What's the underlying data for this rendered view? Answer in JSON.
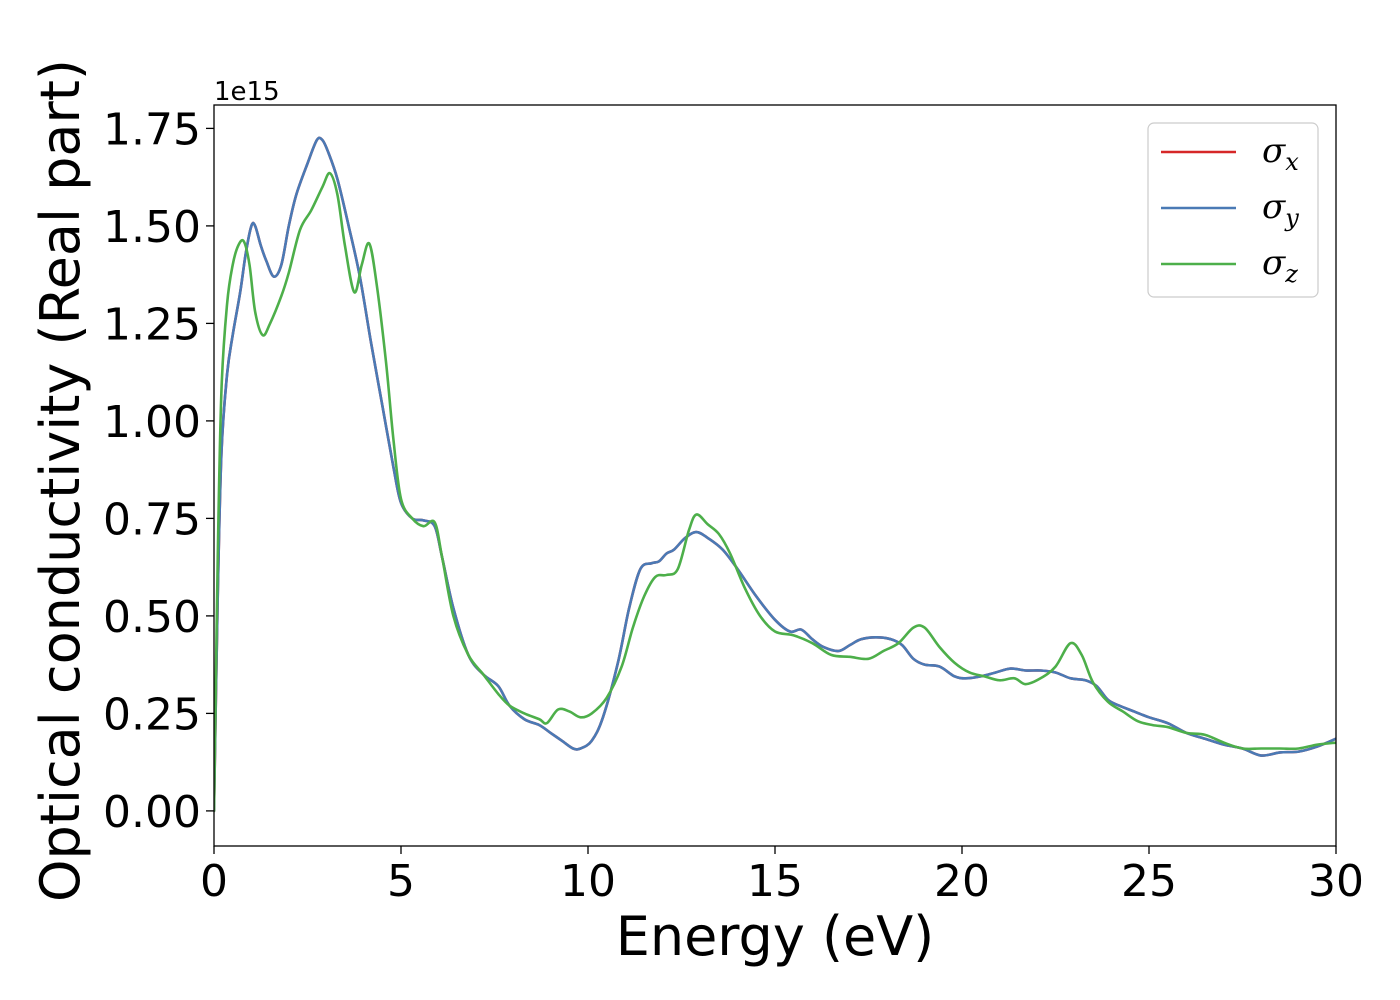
{
  "chart_data": {
    "type": "line",
    "xlabel": "Energy (eV)",
    "ylabel": "Optical conductivity (Real part)",
    "y_offset_label": "1e15",
    "y_multiplier": 1000000000000000.0,
    "xlim": [
      0,
      30
    ],
    "ylim": [
      -0.09,
      1.81
    ],
    "x_ticks": [
      0,
      5,
      10,
      15,
      20,
      25,
      30
    ],
    "x_tick_labels": [
      "0",
      "5",
      "10",
      "15",
      "20",
      "25",
      "30"
    ],
    "y_ticks": [
      0.0,
      0.25,
      0.5,
      0.75,
      1.0,
      1.25,
      1.5,
      1.75
    ],
    "y_tick_labels": [
      "0.00",
      "0.25",
      "0.50",
      "0.75",
      "1.00",
      "1.25",
      "1.50",
      "1.75"
    ],
    "grid": false,
    "legend_position": "top-right",
    "series": [
      {
        "name": "σx",
        "symbol": "σ",
        "subscript": "x",
        "color": "#d62728",
        "x": [
          0,
          0.1,
          0.2,
          0.35,
          0.5,
          0.7,
          0.85,
          1.0,
          1.1,
          1.25,
          1.4,
          1.6,
          1.8,
          2.0,
          2.2,
          2.5,
          2.75,
          2.9,
          3.05,
          3.3,
          3.6,
          3.9,
          4.2,
          4.5,
          4.8,
          5.0,
          5.3,
          5.6,
          5.9,
          6.1,
          6.4,
          6.8,
          7.2,
          7.6,
          7.9,
          8.3,
          8.7,
          9.0,
          9.3,
          9.6,
          9.8,
          10.1,
          10.4,
          10.8,
          11.1,
          11.4,
          11.7,
          11.9,
          12.1,
          12.3,
          12.6,
          12.9,
          13.2,
          13.6,
          14.0,
          14.5,
          15.0,
          15.4,
          15.7,
          16.0,
          16.3,
          16.7,
          17.0,
          17.3,
          17.7,
          18.1,
          18.4,
          18.7,
          19.0,
          19.4,
          19.8,
          20.1,
          20.5,
          20.9,
          21.3,
          21.7,
          22.1,
          22.5,
          22.9,
          23.3,
          23.6,
          23.9,
          24.2,
          24.6,
          25.0,
          25.5,
          26.0,
          26.5,
          27.0,
          27.5,
          28.0,
          28.5,
          29.0,
          29.5,
          30.0
        ],
        "y": [
          0.0,
          0.55,
          0.92,
          1.12,
          1.22,
          1.33,
          1.43,
          1.5,
          1.5,
          1.45,
          1.41,
          1.37,
          1.4,
          1.5,
          1.58,
          1.66,
          1.72,
          1.72,
          1.69,
          1.62,
          1.5,
          1.37,
          1.2,
          1.04,
          0.88,
          0.79,
          0.75,
          0.745,
          0.73,
          0.65,
          0.52,
          0.4,
          0.35,
          0.32,
          0.27,
          0.235,
          0.22,
          0.2,
          0.18,
          0.16,
          0.16,
          0.18,
          0.24,
          0.38,
          0.52,
          0.62,
          0.635,
          0.64,
          0.66,
          0.67,
          0.7,
          0.715,
          0.7,
          0.67,
          0.62,
          0.55,
          0.49,
          0.46,
          0.465,
          0.44,
          0.42,
          0.41,
          0.425,
          0.44,
          0.445,
          0.44,
          0.425,
          0.39,
          0.375,
          0.37,
          0.345,
          0.34,
          0.345,
          0.355,
          0.365,
          0.36,
          0.36,
          0.355,
          0.34,
          0.335,
          0.32,
          0.285,
          0.27,
          0.255,
          0.24,
          0.225,
          0.2,
          0.185,
          0.17,
          0.16,
          0.142,
          0.15,
          0.152,
          0.165,
          0.185
        ]
      },
      {
        "name": "σy",
        "symbol": "σ",
        "subscript": "y",
        "color": "#4a7ab5",
        "x": [
          0,
          0.1,
          0.2,
          0.35,
          0.5,
          0.7,
          0.85,
          1.0,
          1.1,
          1.25,
          1.4,
          1.6,
          1.8,
          2.0,
          2.2,
          2.5,
          2.75,
          2.9,
          3.05,
          3.3,
          3.6,
          3.9,
          4.2,
          4.5,
          4.8,
          5.0,
          5.3,
          5.6,
          5.9,
          6.1,
          6.4,
          6.8,
          7.2,
          7.6,
          7.9,
          8.3,
          8.7,
          9.0,
          9.3,
          9.6,
          9.8,
          10.1,
          10.4,
          10.8,
          11.1,
          11.4,
          11.7,
          11.9,
          12.1,
          12.3,
          12.6,
          12.9,
          13.2,
          13.6,
          14.0,
          14.5,
          15.0,
          15.4,
          15.7,
          16.0,
          16.3,
          16.7,
          17.0,
          17.3,
          17.7,
          18.1,
          18.4,
          18.7,
          19.0,
          19.4,
          19.8,
          20.1,
          20.5,
          20.9,
          21.3,
          21.7,
          22.1,
          22.5,
          22.9,
          23.3,
          23.6,
          23.9,
          24.2,
          24.6,
          25.0,
          25.5,
          26.0,
          26.5,
          27.0,
          27.5,
          28.0,
          28.5,
          29.0,
          29.5,
          30.0
        ],
        "y": [
          0.0,
          0.55,
          0.92,
          1.12,
          1.22,
          1.33,
          1.43,
          1.5,
          1.5,
          1.45,
          1.41,
          1.37,
          1.4,
          1.5,
          1.58,
          1.66,
          1.72,
          1.72,
          1.69,
          1.62,
          1.5,
          1.37,
          1.2,
          1.04,
          0.88,
          0.79,
          0.75,
          0.745,
          0.73,
          0.65,
          0.52,
          0.4,
          0.35,
          0.32,
          0.27,
          0.235,
          0.22,
          0.2,
          0.18,
          0.16,
          0.16,
          0.18,
          0.24,
          0.38,
          0.52,
          0.62,
          0.635,
          0.64,
          0.66,
          0.67,
          0.7,
          0.715,
          0.7,
          0.67,
          0.62,
          0.55,
          0.49,
          0.46,
          0.465,
          0.44,
          0.42,
          0.41,
          0.425,
          0.44,
          0.445,
          0.44,
          0.425,
          0.39,
          0.375,
          0.37,
          0.345,
          0.34,
          0.345,
          0.355,
          0.365,
          0.36,
          0.36,
          0.355,
          0.34,
          0.335,
          0.32,
          0.285,
          0.27,
          0.255,
          0.24,
          0.225,
          0.2,
          0.185,
          0.17,
          0.16,
          0.142,
          0.15,
          0.152,
          0.165,
          0.185
        ]
      },
      {
        "name": "σz",
        "symbol": "σ",
        "subscript": "z",
        "color": "#4daf4a",
        "x": [
          0,
          0.1,
          0.2,
          0.35,
          0.5,
          0.65,
          0.8,
          0.95,
          1.1,
          1.3,
          1.5,
          1.8,
          2.0,
          2.3,
          2.6,
          2.9,
          3.1,
          3.3,
          3.5,
          3.75,
          3.95,
          4.15,
          4.35,
          4.6,
          4.8,
          5.0,
          5.3,
          5.6,
          5.9,
          6.1,
          6.4,
          6.8,
          7.2,
          7.6,
          7.9,
          8.3,
          8.7,
          8.9,
          9.2,
          9.5,
          9.8,
          10.1,
          10.5,
          10.9,
          11.2,
          11.5,
          11.8,
          12.1,
          12.4,
          12.7,
          12.9,
          13.2,
          13.5,
          13.8,
          14.2,
          14.6,
          15.0,
          15.5,
          16.0,
          16.5,
          17.0,
          17.5,
          17.9,
          18.3,
          18.7,
          19.0,
          19.4,
          19.8,
          20.2,
          20.6,
          21.0,
          21.4,
          21.7,
          22.1,
          22.5,
          22.9,
          23.2,
          23.5,
          23.9,
          24.3,
          24.7,
          25.1,
          25.5,
          26.0,
          26.5,
          27.0,
          27.5,
          28.0,
          28.5,
          29.0,
          29.5,
          30.0
        ],
        "y": [
          0.0,
          0.65,
          1.08,
          1.3,
          1.4,
          1.45,
          1.46,
          1.4,
          1.28,
          1.22,
          1.25,
          1.32,
          1.38,
          1.49,
          1.54,
          1.6,
          1.635,
          1.58,
          1.45,
          1.33,
          1.4,
          1.455,
          1.35,
          1.15,
          0.95,
          0.8,
          0.75,
          0.73,
          0.74,
          0.65,
          0.5,
          0.4,
          0.35,
          0.3,
          0.27,
          0.25,
          0.235,
          0.225,
          0.26,
          0.255,
          0.24,
          0.25,
          0.29,
          0.37,
          0.47,
          0.55,
          0.6,
          0.605,
          0.62,
          0.72,
          0.76,
          0.735,
          0.71,
          0.66,
          0.57,
          0.5,
          0.46,
          0.45,
          0.43,
          0.4,
          0.395,
          0.39,
          0.41,
          0.43,
          0.47,
          0.47,
          0.42,
          0.38,
          0.355,
          0.345,
          0.335,
          0.34,
          0.325,
          0.34,
          0.37,
          0.43,
          0.4,
          0.33,
          0.28,
          0.255,
          0.23,
          0.22,
          0.215,
          0.2,
          0.195,
          0.175,
          0.16,
          0.16,
          0.16,
          0.16,
          0.17,
          0.175
        ]
      }
    ]
  }
}
